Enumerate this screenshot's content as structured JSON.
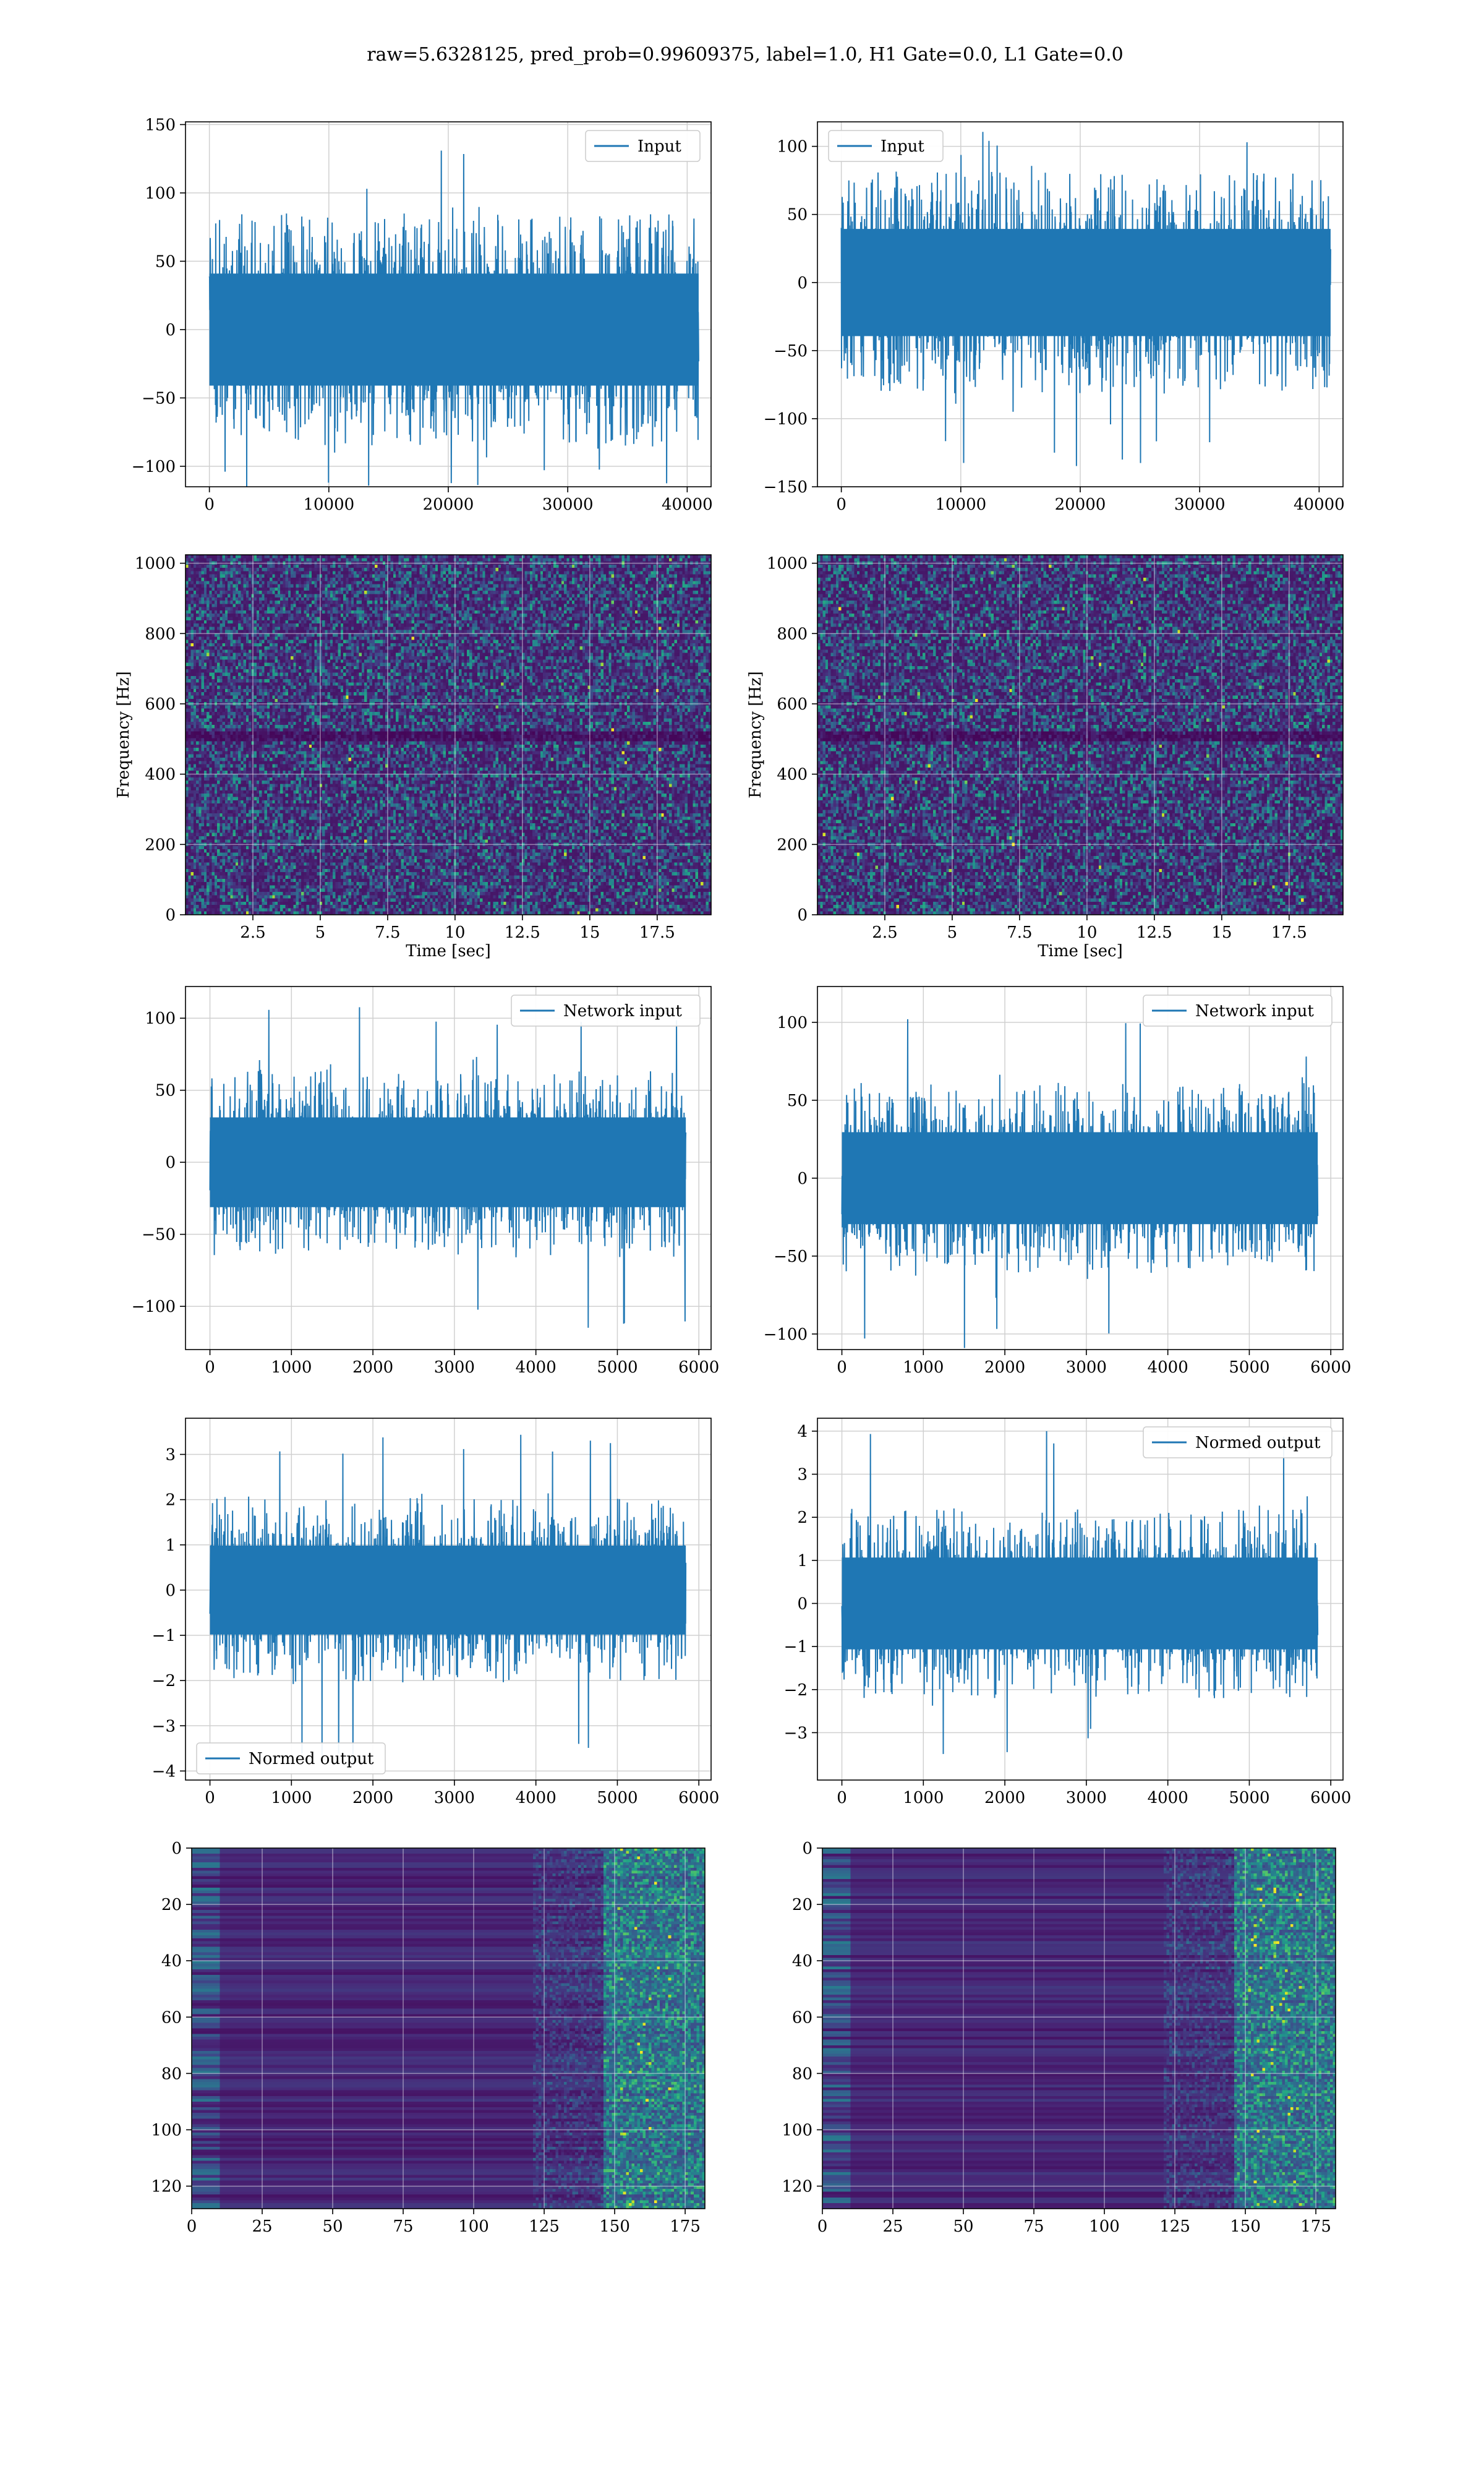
{
  "title": "raw=5.6328125, pred_prob=0.99609375, label=1.0, H1 Gate=0.0, L1 Gate=0.0",
  "colors": {
    "line": "#1f77b4",
    "grid": "#d0d0d0",
    "viridis": [
      "#440154",
      "#482878",
      "#3e4989",
      "#31688e",
      "#26828e",
      "#1f9e89",
      "#35b779",
      "#6ece58",
      "#b5de2b",
      "#fde725"
    ]
  },
  "chart_data": [
    {
      "id": "p1",
      "type": "line",
      "series_name": "Input",
      "legend": "upper right",
      "xlim": [
        -2000,
        42000
      ],
      "ylim": [
        -115,
        152
      ],
      "xticks": [
        0,
        10000,
        20000,
        30000,
        40000
      ],
      "yticks": [
        -100,
        -50,
        0,
        50,
        100,
        150
      ],
      "n": 40960,
      "core": 50,
      "peak_max": 140,
      "peak_min": -118,
      "grid": true
    },
    {
      "id": "p2",
      "type": "line",
      "series_name": "Input",
      "legend": "upper left",
      "xlim": [
        -2000,
        42000
      ],
      "ylim": [
        -150,
        118
      ],
      "xticks": [
        0,
        10000,
        20000,
        30000,
        40000
      ],
      "yticks": [
        -150,
        -100,
        -50,
        0,
        50,
        100
      ],
      "n": 40960,
      "core": 48,
      "peak_max": 118,
      "peak_min": -136,
      "grid": true
    },
    {
      "id": "p3",
      "type": "heatmap",
      "colormap": "viridis",
      "description": "spectrogram",
      "xlabel": "Time [sec]",
      "ylabel": "Frequency [Hz]",
      "xlim": [
        0,
        19.5
      ],
      "ylim": [
        0,
        1024
      ],
      "xticks": [
        2.5,
        5.0,
        7.5,
        10.0,
        12.5,
        15.0,
        17.5
      ],
      "yticks": [
        0,
        200,
        400,
        600,
        800,
        1000
      ],
      "dark_band_hz": 512,
      "grid": true
    },
    {
      "id": "p4",
      "type": "heatmap",
      "colormap": "viridis",
      "description": "spectrogram",
      "xlabel": "Time [sec]",
      "ylabel": "Frequency [Hz]",
      "xlim": [
        0,
        19.5
      ],
      "ylim": [
        0,
        1024
      ],
      "xticks": [
        2.5,
        5.0,
        7.5,
        10.0,
        12.5,
        15.0,
        17.5
      ],
      "yticks": [
        0,
        200,
        400,
        600,
        800,
        1000
      ],
      "dark_band_hz": 512,
      "grid": true
    },
    {
      "id": "p5",
      "type": "line",
      "series_name": "Network input",
      "legend": "upper right",
      "xlim": [
        -300,
        6150
      ],
      "ylim": [
        -130,
        122
      ],
      "xticks": [
        0,
        1000,
        2000,
        3000,
        4000,
        5000,
        6000
      ],
      "yticks": [
        -100,
        -50,
        0,
        50,
        100
      ],
      "n": 5840,
      "core": 38,
      "peak_max": 112,
      "peak_min": -120,
      "grid": true
    },
    {
      "id": "p6",
      "type": "line",
      "series_name": "Network input",
      "legend": "upper right",
      "xlim": [
        -300,
        6150
      ],
      "ylim": [
        -110,
        123
      ],
      "xticks": [
        0,
        1000,
        2000,
        3000,
        4000,
        5000,
        6000
      ],
      "yticks": [
        -100,
        -50,
        0,
        50,
        100
      ],
      "n": 5840,
      "core": 36,
      "peak_max": 110,
      "peak_min": -112,
      "grid": true
    },
    {
      "id": "p7",
      "type": "line",
      "series_name": "Normed output",
      "legend": "lower left",
      "xlim": [
        -300,
        6150
      ],
      "ylim": [
        -4.2,
        3.8
      ],
      "xticks": [
        0,
        1000,
        2000,
        3000,
        4000,
        5000,
        6000
      ],
      "yticks": [
        -4,
        -3,
        -2,
        -1,
        0,
        1,
        2,
        3
      ],
      "n": 5840,
      "core": 1.2,
      "peak_max": 3.5,
      "peak_min": -3.9,
      "grid": true
    },
    {
      "id": "p8",
      "type": "line",
      "series_name": "Normed output",
      "legend": "upper right",
      "xlim": [
        -300,
        6150
      ],
      "ylim": [
        -4.1,
        4.3
      ],
      "xticks": [
        0,
        1000,
        2000,
        3000,
        4000,
        5000,
        6000
      ],
      "yticks": [
        -3,
        -2,
        -1,
        0,
        1,
        2,
        3,
        4
      ],
      "n": 5840,
      "core": 1.3,
      "peak_max": 4.1,
      "peak_min": -3.6,
      "grid": true
    },
    {
      "id": "p9",
      "type": "heatmap",
      "colormap": "viridis",
      "description": "feature map",
      "xlim": [
        0,
        182
      ],
      "ylim": [
        128,
        0
      ],
      "xticks": [
        0,
        25,
        50,
        75,
        100,
        125,
        150,
        175
      ],
      "yticks": [
        0,
        20,
        40,
        60,
        80,
        100,
        120
      ],
      "rows": 128,
      "cols": 182,
      "bright_zone": [
        145,
        180
      ],
      "grid": true
    },
    {
      "id": "p10",
      "type": "heatmap",
      "colormap": "viridis",
      "description": "feature map",
      "xlim": [
        0,
        182
      ],
      "ylim": [
        128,
        0
      ],
      "xticks": [
        0,
        25,
        50,
        75,
        100,
        125,
        150,
        175
      ],
      "yticks": [
        0,
        20,
        40,
        60,
        80,
        100,
        120
      ],
      "rows": 128,
      "cols": 182,
      "bright_zone": [
        145,
        180
      ],
      "grid": true
    }
  ]
}
